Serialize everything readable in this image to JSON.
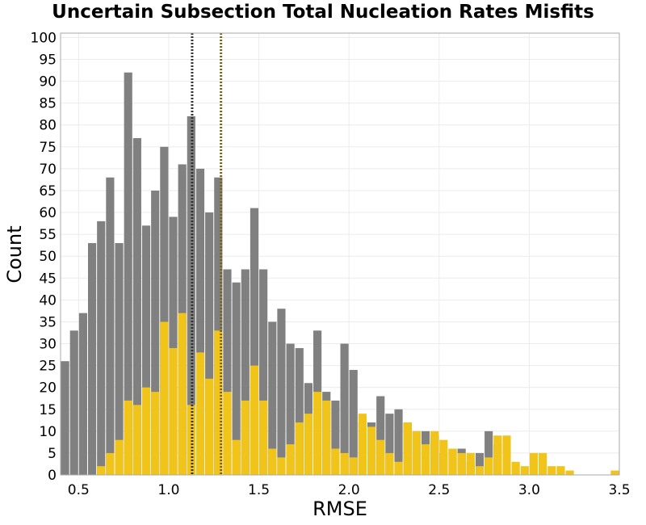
{
  "chart_data": {
    "type": "bar",
    "title": "Uncertain Subsection Total Nucleation Rates Misfits",
    "xlabel": "RMSE",
    "ylabel": "Count",
    "xlim": [
      0.4,
      3.5
    ],
    "ylim": [
      0,
      101
    ],
    "bin_width": 0.05,
    "x_ticks": [
      0.5,
      1.0,
      1.5,
      2.0,
      2.5,
      3.0,
      3.5
    ],
    "x_tick_labels": [
      "0.5",
      "1.0",
      "1.5",
      "2.0",
      "2.5",
      "3.0",
      "3.5"
    ],
    "y_ticks": [
      0,
      5,
      10,
      15,
      20,
      25,
      30,
      35,
      40,
      45,
      50,
      55,
      60,
      65,
      70,
      75,
      80,
      85,
      90,
      95,
      100
    ],
    "y_tick_labels": [
      "0",
      "5",
      "10",
      "15",
      "20",
      "25",
      "30",
      "35",
      "40",
      "45",
      "50",
      "55",
      "60",
      "65",
      "70",
      "75",
      "80",
      "85",
      "90",
      "95",
      "100"
    ],
    "grid": true,
    "series": [
      {
        "color": "#808080",
        "bin_starts": [
          0.4,
          0.45,
          0.5,
          0.55,
          0.6,
          0.65,
          0.7,
          0.75,
          0.8,
          0.85,
          0.9,
          0.95,
          1.0,
          1.05,
          1.1,
          1.15,
          1.2,
          1.25,
          1.3,
          1.35,
          1.4,
          1.45,
          1.5,
          1.55,
          1.6,
          1.65,
          1.7,
          1.75,
          1.8,
          1.85,
          1.9,
          1.95,
          2.0,
          2.05,
          2.1,
          2.15,
          2.2,
          2.25,
          2.3,
          2.35,
          2.4,
          2.45,
          2.5,
          2.55,
          2.6,
          2.65,
          2.7,
          2.75,
          2.8
        ],
        "values": [
          26,
          33,
          37,
          53,
          58,
          68,
          53,
          92,
          77,
          57,
          65,
          75,
          59,
          71,
          82,
          70,
          60,
          68,
          47,
          44,
          47,
          61,
          47,
          35,
          38,
          30,
          29,
          21,
          33,
          19,
          17,
          30,
          24,
          12,
          12,
          18,
          14,
          15,
          12,
          10,
          10,
          9,
          5,
          6,
          6,
          3,
          5,
          10,
          7
        ]
      },
      {
        "color": "#f0c419",
        "bin_starts": [
          0.6,
          0.65,
          0.7,
          0.75,
          0.8,
          0.85,
          0.9,
          0.95,
          1.0,
          1.05,
          1.1,
          1.15,
          1.2,
          1.25,
          1.3,
          1.35,
          1.4,
          1.45,
          1.5,
          1.55,
          1.6,
          1.65,
          1.7,
          1.75,
          1.8,
          1.85,
          1.9,
          1.95,
          2.0,
          2.05,
          2.1,
          2.15,
          2.2,
          2.25,
          2.3,
          2.35,
          2.4,
          2.45,
          2.5,
          2.55,
          2.6,
          2.65,
          2.7,
          2.75,
          2.8,
          2.85,
          2.9,
          2.95,
          3.0,
          3.05,
          3.1,
          3.15,
          3.2,
          3.45
        ],
        "values": [
          2,
          5,
          8,
          17,
          16,
          20,
          19,
          35,
          29,
          37,
          16,
          28,
          22,
          33,
          19,
          8,
          17,
          25,
          17,
          6,
          4,
          7,
          12,
          14,
          19,
          17,
          6,
          5,
          4,
          14,
          11,
          8,
          5,
          3,
          12,
          10,
          7,
          10,
          8,
          6,
          5,
          5,
          2,
          4,
          9,
          9,
          3,
          2,
          5,
          5,
          2,
          2,
          1,
          1
        ]
      }
    ],
    "vlines": [
      {
        "x": 1.13,
        "color": "#333333"
      },
      {
        "x": 1.29,
        "color": "#7a6310"
      }
    ]
  }
}
